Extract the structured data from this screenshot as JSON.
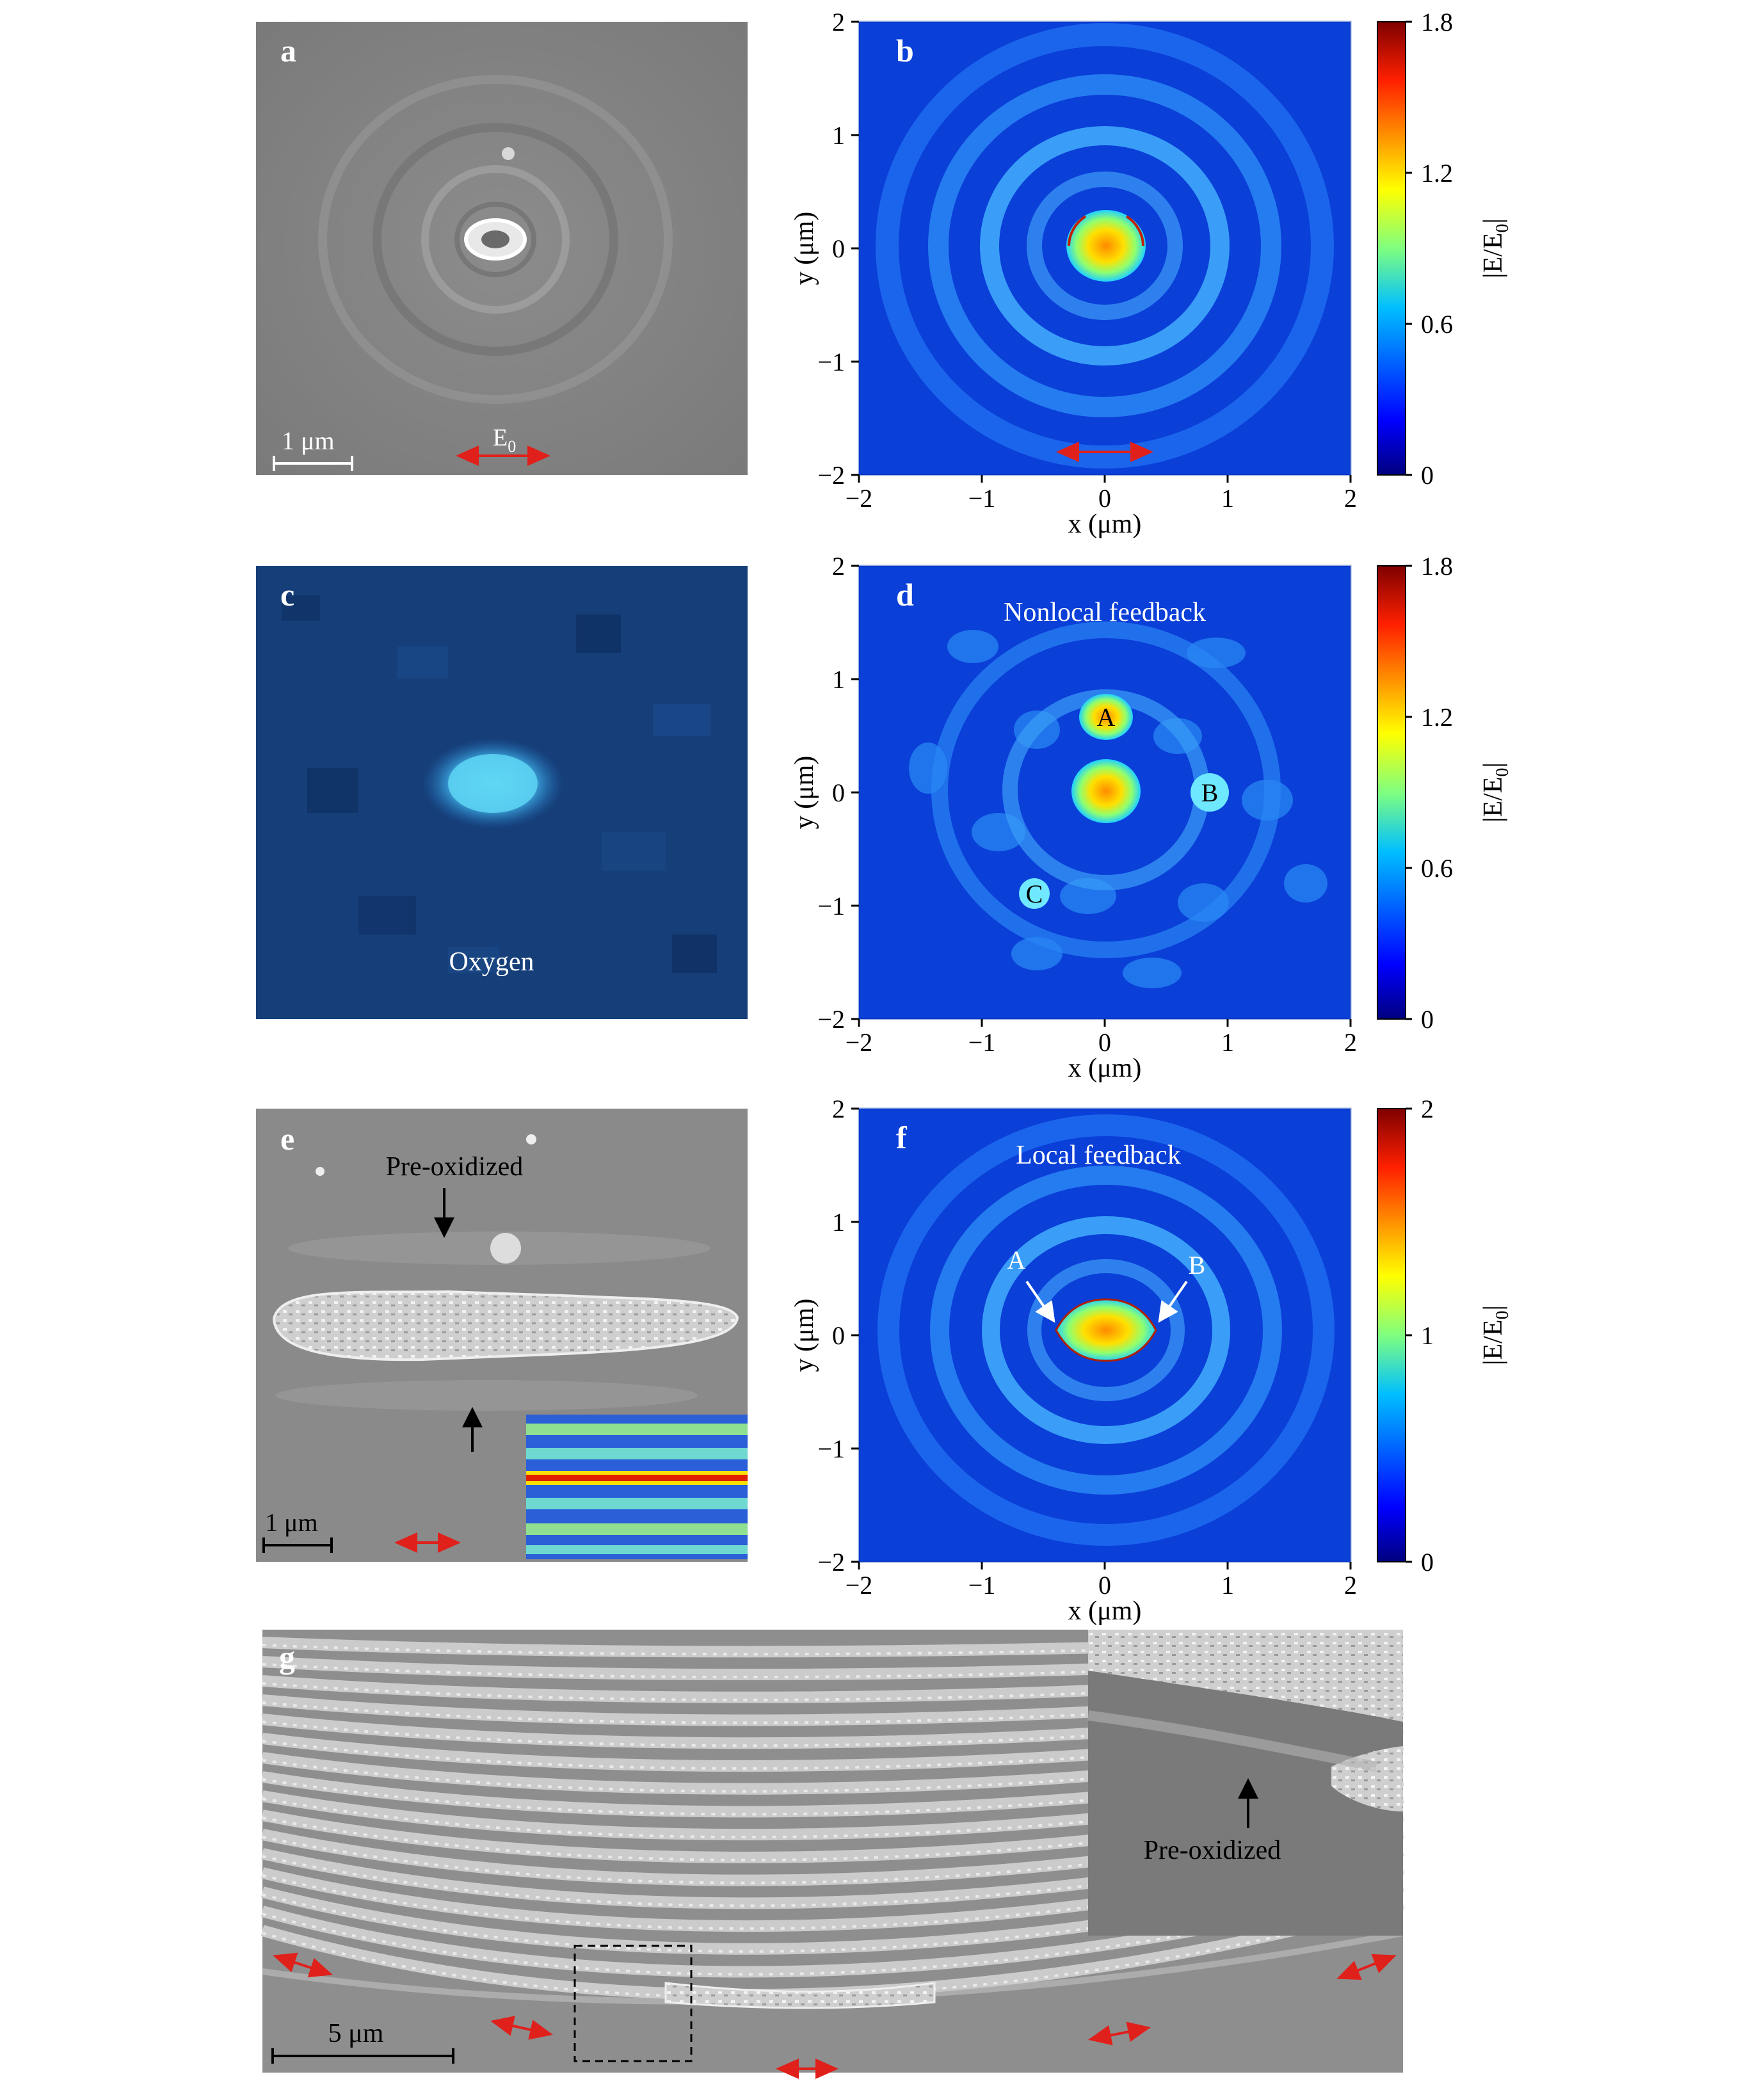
{
  "panels": {
    "a": {
      "label": "a",
      "scale_bar": "1 μm",
      "polarization": "E",
      "polarization_sub": "0"
    },
    "b": {
      "label": "b"
    },
    "c": {
      "label": "c",
      "caption": "Oxygen"
    },
    "d": {
      "label": "d",
      "title": "Nonlocal feedback",
      "markers": [
        "A",
        "B",
        "C"
      ]
    },
    "e": {
      "label": "e",
      "annotation": "Pre-oxidized",
      "scale_bar": "1 μm"
    },
    "f": {
      "label": "f",
      "title": "Local feedback",
      "markers": [
        "A",
        "B"
      ]
    },
    "g": {
      "label": "g",
      "scale_bar": "5 μm",
      "inset_annotation": "Pre-oxidized"
    }
  },
  "colors": {
    "sem_gray": "#8a8a8a",
    "oxygen_blue": "#16407a",
    "polarization_arrow": "#e0201b",
    "colormap": [
      "#00007f",
      "#0000ff",
      "#007fff",
      "#00ffff",
      "#7fff7f",
      "#ffff00",
      "#ff7f00",
      "#ff0000",
      "#7f0000"
    ]
  },
  "chart_data": [
    {
      "panel": "b",
      "type": "heatmap",
      "xlabel": "x (μm)",
      "ylabel": "y (μm)",
      "xlim": [
        -2,
        2
      ],
      "ylim": [
        -2,
        2
      ],
      "xticks": [
        "−2",
        "−1",
        "0",
        "1",
        "2"
      ],
      "yticks": [
        "−2",
        "−1",
        "0",
        "1",
        "2"
      ],
      "colorbar": {
        "label": "|E/E",
        "label_sub": "0",
        "label_end": "|",
        "ticks": [
          "0",
          "0.6",
          "1.2",
          "1.8"
        ],
        "range": [
          0,
          1.8
        ]
      }
    },
    {
      "panel": "d",
      "type": "heatmap",
      "xlabel": "x (μm)",
      "ylabel": "y (μm)",
      "xlim": [
        -2,
        2
      ],
      "ylim": [
        -2,
        2
      ],
      "xticks": [
        "−2",
        "−1",
        "0",
        "1",
        "2"
      ],
      "yticks": [
        "−2",
        "−1",
        "0",
        "1",
        "2"
      ],
      "colorbar": {
        "label": "|E/E",
        "label_sub": "0",
        "label_end": "|",
        "ticks": [
          "0",
          "0.6",
          "1.2",
          "1.8"
        ],
        "range": [
          0,
          1.8
        ]
      }
    },
    {
      "panel": "f",
      "type": "heatmap",
      "xlabel": "x (μm)",
      "ylabel": "y (μm)",
      "xlim": [
        -2,
        2
      ],
      "ylim": [
        -2,
        2
      ],
      "xticks": [
        "−2",
        "−1",
        "0",
        "1",
        "2"
      ],
      "yticks": [
        "−2",
        "−1",
        "0",
        "1",
        "2"
      ],
      "colorbar": {
        "label": "|E/E",
        "label_sub": "0",
        "label_end": "|",
        "ticks": [
          "0",
          "1",
          "2"
        ],
        "range": [
          0,
          2
        ]
      }
    }
  ]
}
